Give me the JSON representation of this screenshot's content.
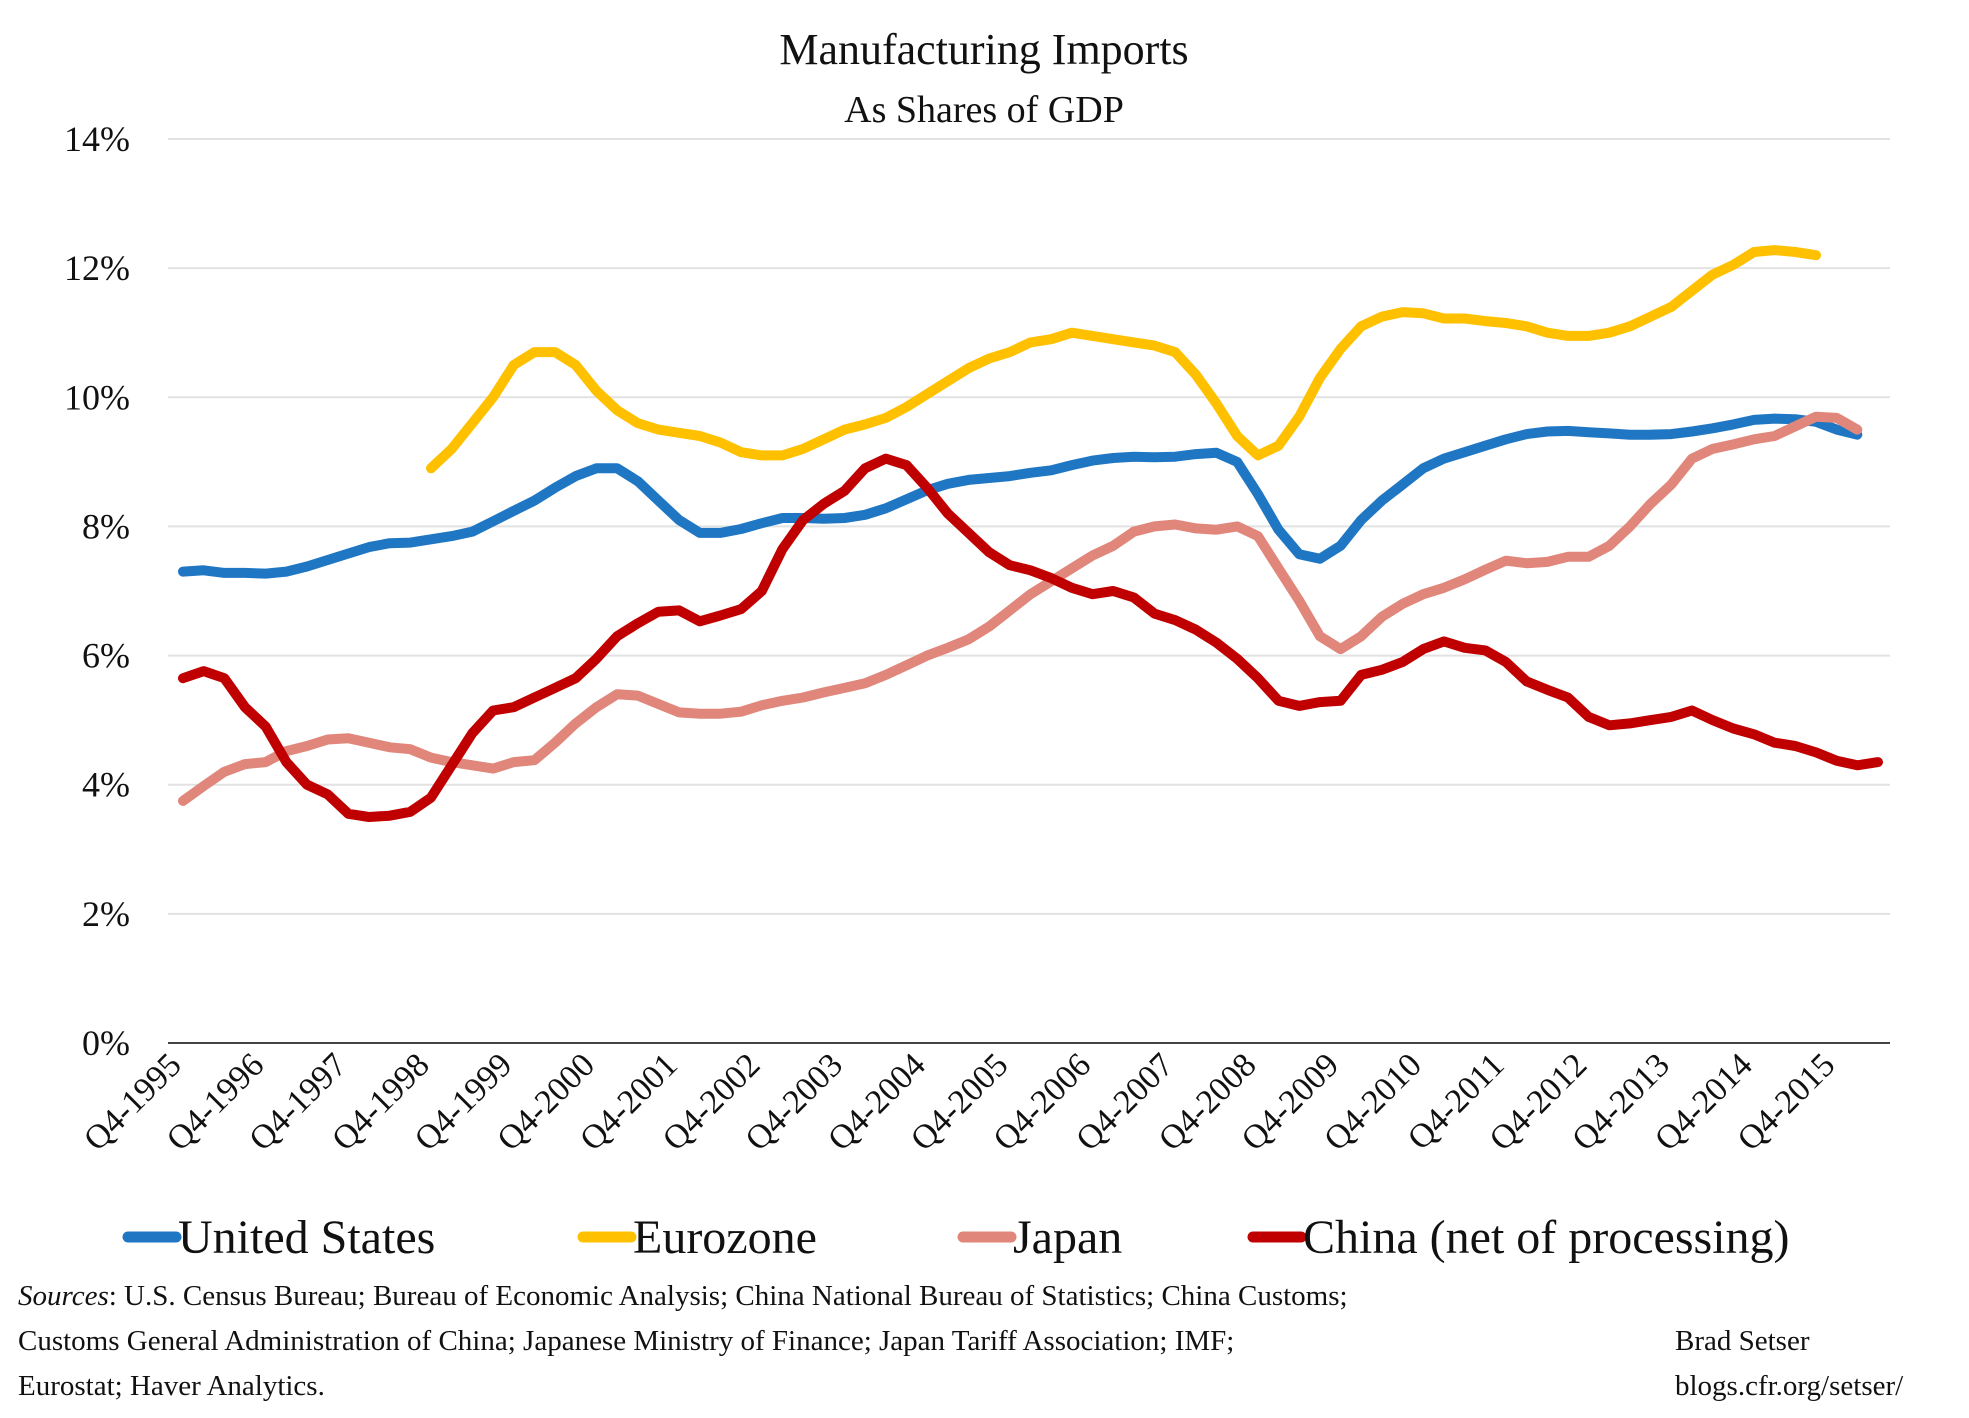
{
  "chart_data": {
    "type": "line",
    "title": "Manufacturing Imports",
    "subtitle": "As Shares of GDP",
    "x_tick_labels": [
      "Q4-1995",
      "Q4-1996",
      "Q4-1997",
      "Q4-1998",
      "Q4-1999",
      "Q4-2000",
      "Q4-2001",
      "Q4-2002",
      "Q4-2003",
      "Q4-2004",
      "Q4-2005",
      "Q4-2006",
      "Q4-2007",
      "Q4-2008",
      "Q4-2009",
      "Q4-2010",
      "Q4-2011",
      "Q4-2012",
      "Q4-2013",
      "Q4-2014",
      "Q4-2015"
    ],
    "y_tick_labels": [
      "0%",
      "2%",
      "4%",
      "6%",
      "8%",
      "10%",
      "12%",
      "14%"
    ],
    "ylim": [
      0,
      14
    ],
    "x_start": "Q4-1995",
    "x_end": "Q2-2016",
    "grid": true,
    "legend_position": "bottom",
    "series": [
      {
        "name": "United States",
        "color": "#1F77C4",
        "start": "Q4-1995",
        "values": [
          7.3,
          7.32,
          7.28,
          7.28,
          7.27,
          7.3,
          7.38,
          7.48,
          7.58,
          7.68,
          7.74,
          7.75,
          7.8,
          7.85,
          7.92,
          8.08,
          8.24,
          8.4,
          8.6,
          8.78,
          8.9,
          8.9,
          8.7,
          8.4,
          8.1,
          7.9,
          7.9,
          7.96,
          8.05,
          8.13,
          8.13,
          8.12,
          8.13,
          8.18,
          8.28,
          8.42,
          8.56,
          8.66,
          8.72,
          8.75,
          8.78,
          8.83,
          8.87,
          8.95,
          9.02,
          9.06,
          9.08,
          9.07,
          9.08,
          9.12,
          9.14,
          9.0,
          8.5,
          7.95,
          7.57,
          7.5,
          7.7,
          8.1,
          8.4,
          8.65,
          8.9,
          9.05,
          9.15,
          9.25,
          9.35,
          9.43,
          9.47,
          9.48,
          9.46,
          9.44,
          9.42,
          9.42,
          9.43,
          9.47,
          9.52,
          9.58,
          9.65,
          9.67,
          9.66,
          9.62,
          9.5,
          9.42
        ]
      },
      {
        "name": "Eurozone",
        "color": "#FFC000",
        "start": "Q4-1998",
        "values": [
          8.9,
          9.2,
          9.6,
          10.0,
          10.5,
          10.7,
          10.7,
          10.5,
          10.1,
          9.8,
          9.6,
          9.5,
          9.45,
          9.4,
          9.3,
          9.15,
          9.1,
          9.1,
          9.2,
          9.35,
          9.5,
          9.58,
          9.68,
          9.85,
          10.05,
          10.25,
          10.45,
          10.6,
          10.7,
          10.85,
          10.9,
          11.0,
          10.95,
          10.9,
          10.85,
          10.8,
          10.7,
          10.35,
          9.9,
          9.4,
          9.1,
          9.25,
          9.7,
          10.3,
          10.75,
          11.1,
          11.25,
          11.32,
          11.3,
          11.22,
          11.22,
          11.18,
          11.15,
          11.1,
          11.0,
          10.95,
          10.95,
          11.0,
          11.1,
          11.25,
          11.4,
          11.65,
          11.9,
          12.05,
          12.25,
          12.28,
          12.25,
          12.2
        ]
      },
      {
        "name": "Japan",
        "color": "#E0867A",
        "start": "Q4-1995",
        "values": [
          3.75,
          3.98,
          4.2,
          4.32,
          4.35,
          4.52,
          4.6,
          4.7,
          4.72,
          4.65,
          4.58,
          4.55,
          4.42,
          4.35,
          4.3,
          4.25,
          4.35,
          4.38,
          4.65,
          4.95,
          5.2,
          5.4,
          5.38,
          5.25,
          5.12,
          5.1,
          5.1,
          5.13,
          5.23,
          5.3,
          5.35,
          5.43,
          5.5,
          5.57,
          5.7,
          5.85,
          6.0,
          6.12,
          6.25,
          6.45,
          6.7,
          6.95,
          7.15,
          7.35,
          7.55,
          7.7,
          7.92,
          8.0,
          8.03,
          7.97,
          7.95,
          8.0,
          7.85,
          7.35,
          6.85,
          6.3,
          6.1,
          6.3,
          6.6,
          6.8,
          6.95,
          7.05,
          7.18,
          7.33,
          7.47,
          7.43,
          7.45,
          7.53,
          7.53,
          7.7,
          8.0,
          8.35,
          8.65,
          9.05,
          9.2,
          9.27,
          9.35,
          9.4,
          9.55,
          9.7,
          9.68,
          9.5
        ]
      },
      {
        "name": "China (net of processing)",
        "color": "#C00000",
        "start": "Q4-1995",
        "values": [
          5.65,
          5.76,
          5.65,
          5.2,
          4.9,
          4.35,
          4.0,
          3.85,
          3.55,
          3.5,
          3.52,
          3.58,
          3.8,
          4.3,
          4.8,
          5.15,
          5.2,
          5.35,
          5.5,
          5.65,
          5.95,
          6.3,
          6.5,
          6.68,
          6.7,
          6.53,
          6.62,
          6.72,
          7.0,
          7.65,
          8.1,
          8.35,
          8.55,
          8.9,
          9.05,
          8.95,
          8.6,
          8.2,
          7.9,
          7.6,
          7.4,
          7.32,
          7.2,
          7.05,
          6.95,
          7.0,
          6.9,
          6.65,
          6.55,
          6.4,
          6.2,
          5.95,
          5.65,
          5.3,
          5.22,
          5.28,
          5.3,
          5.7,
          5.78,
          5.9,
          6.1,
          6.22,
          6.12,
          6.08,
          5.9,
          5.6,
          5.47,
          5.35,
          5.05,
          4.92,
          4.95,
          5.0,
          5.05,
          5.15,
          5.0,
          4.87,
          4.78,
          4.65,
          4.6,
          4.5,
          4.37,
          4.3,
          4.35
        ]
      }
    ]
  },
  "sources_label": "Sources",
  "sources_text_line1": ": U.S. Census Bureau; Bureau of Economic Analysis; China National Bureau of Statistics; China Customs;",
  "sources_text_line2": "Customs General Administration of China; Japanese Ministry of Finance; Japan Tariff Association; IMF;",
  "sources_text_line3": "Eurostat; Haver Analytics.",
  "credit_name": "Brad Setser",
  "credit_url": "blogs.cfr.org/setser/"
}
